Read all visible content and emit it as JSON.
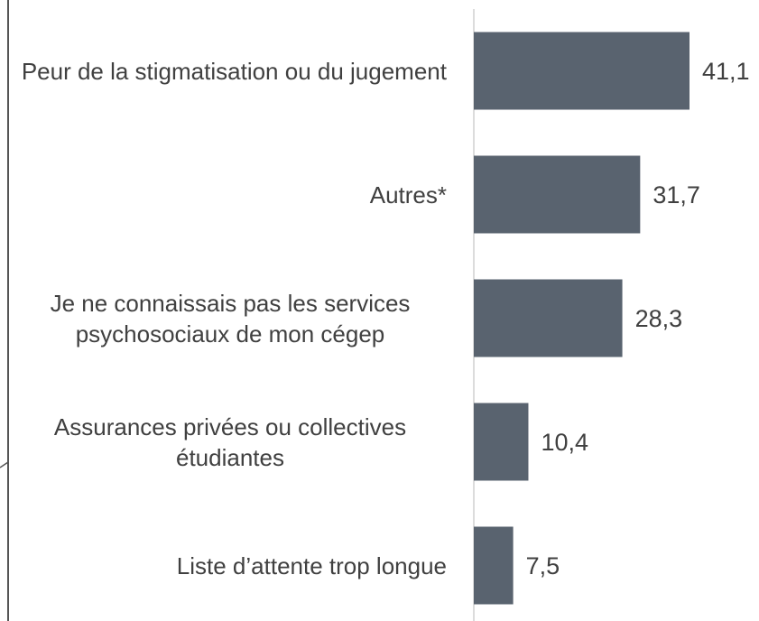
{
  "chart_data": {
    "type": "bar",
    "orientation": "horizontal",
    "categories": [
      "Peur de la stigmatisation ou du jugement",
      "Autres*",
      "Je ne connaissais pas les services psychosociaux de mon cégep",
      "Assurances privées ou collectives étudiantes",
      "Liste d’attente trop longue"
    ],
    "values": [
      41.1,
      31.7,
      28.3,
      10.4,
      7.5
    ],
    "value_labels": [
      "41,1",
      "31,7",
      "28,3",
      "10,4",
      "7,5"
    ],
    "color": "#59636f"
  }
}
